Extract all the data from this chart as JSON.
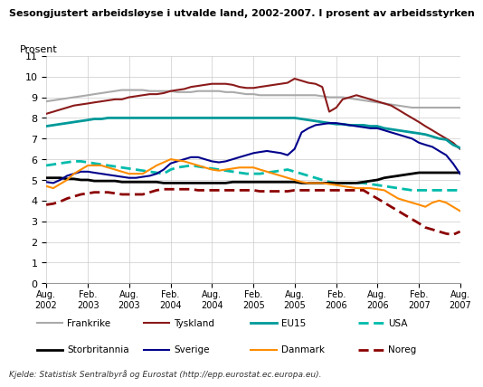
{
  "title": "Sesongjustert arbeidsløyse i utvalde land, 2002-2007. I prosent av arbeidsstyrken",
  "ylabel": "Prosent",
  "footnote": "Kjelde: Statistisk Sentralbyrå og Eurostat (http://epp.eurostat.ec.europa.eu).",
  "ylim": [
    0,
    11
  ],
  "yticks": [
    0,
    1,
    2,
    3,
    4,
    5,
    6,
    7,
    8,
    9,
    10,
    11
  ],
  "n_months": 61,
  "Frankrike": [
    8.8,
    8.85,
    8.9,
    8.95,
    9.0,
    9.05,
    9.1,
    9.15,
    9.2,
    9.25,
    9.3,
    9.35,
    9.35,
    9.35,
    9.35,
    9.3,
    9.3,
    9.3,
    9.3,
    9.25,
    9.25,
    9.25,
    9.3,
    9.3,
    9.3,
    9.3,
    9.25,
    9.25,
    9.2,
    9.15,
    9.15,
    9.1,
    9.1,
    9.1,
    9.1,
    9.1,
    9.1,
    9.1,
    9.1,
    9.1,
    9.05,
    9.0,
    9.0,
    9.0,
    8.95,
    8.9,
    8.85,
    8.8,
    8.75,
    8.7,
    8.65,
    8.6,
    8.55,
    8.5,
    8.5,
    8.5,
    8.5,
    8.5,
    8.5,
    8.5,
    8.5
  ],
  "Tyskland": [
    8.2,
    8.3,
    8.4,
    8.5,
    8.6,
    8.65,
    8.7,
    8.75,
    8.8,
    8.85,
    8.9,
    8.9,
    9.0,
    9.05,
    9.1,
    9.15,
    9.15,
    9.2,
    9.3,
    9.35,
    9.4,
    9.5,
    9.55,
    9.6,
    9.65,
    9.65,
    9.65,
    9.6,
    9.5,
    9.45,
    9.45,
    9.5,
    9.55,
    9.6,
    9.65,
    9.7,
    9.9,
    9.8,
    9.7,
    9.65,
    9.5,
    8.3,
    8.5,
    8.9,
    9.0,
    9.1,
    9.0,
    8.9,
    8.8,
    8.7,
    8.6,
    8.4,
    8.2,
    8.0,
    7.8,
    7.6,
    7.4,
    7.2,
    7.0,
    6.8,
    6.5
  ],
  "EU15": [
    7.6,
    7.65,
    7.7,
    7.75,
    7.8,
    7.85,
    7.9,
    7.95,
    7.95,
    8.0,
    8.0,
    8.0,
    8.0,
    8.0,
    8.0,
    8.0,
    8.0,
    8.0,
    8.0,
    8.0,
    8.0,
    8.0,
    8.0,
    8.0,
    8.0,
    8.0,
    8.0,
    8.0,
    8.0,
    8.0,
    8.0,
    8.0,
    8.0,
    8.0,
    8.0,
    8.0,
    8.0,
    7.95,
    7.9,
    7.85,
    7.8,
    7.75,
    7.7,
    7.7,
    7.65,
    7.65,
    7.65,
    7.6,
    7.6,
    7.5,
    7.45,
    7.4,
    7.35,
    7.3,
    7.25,
    7.2,
    7.1,
    7.0,
    6.95,
    6.7,
    6.55
  ],
  "USA": [
    5.7,
    5.75,
    5.8,
    5.85,
    5.9,
    5.9,
    5.85,
    5.8,
    5.75,
    5.7,
    5.65,
    5.6,
    5.55,
    5.5,
    5.45,
    5.4,
    5.35,
    5.3,
    5.5,
    5.6,
    5.65,
    5.7,
    5.65,
    5.6,
    5.55,
    5.5,
    5.45,
    5.4,
    5.35,
    5.3,
    5.3,
    5.3,
    5.35,
    5.4,
    5.45,
    5.5,
    5.4,
    5.3,
    5.2,
    5.1,
    5.0,
    4.9,
    4.85,
    4.85,
    4.85,
    4.85,
    4.85,
    4.8,
    4.75,
    4.7,
    4.65,
    4.6,
    4.55,
    4.5,
    4.5,
    4.5,
    4.5,
    4.5,
    4.5,
    4.5,
    4.5
  ],
  "Storbritannia": [
    5.1,
    5.1,
    5.1,
    5.05,
    5.05,
    5.0,
    5.0,
    4.95,
    4.95,
    4.95,
    4.95,
    4.9,
    4.9,
    4.9,
    4.9,
    4.9,
    4.9,
    4.85,
    4.85,
    4.85,
    4.85,
    4.85,
    4.85,
    4.85,
    4.85,
    4.85,
    4.85,
    4.9,
    4.9,
    4.9,
    4.9,
    4.9,
    4.9,
    4.9,
    4.9,
    4.9,
    4.9,
    4.85,
    4.85,
    4.85,
    4.85,
    4.85,
    4.85,
    4.85,
    4.85,
    4.85,
    4.9,
    4.95,
    5.0,
    5.1,
    5.15,
    5.2,
    5.25,
    5.3,
    5.35,
    5.35,
    5.35,
    5.35,
    5.35,
    5.35,
    5.35
  ],
  "Sverige": [
    4.9,
    4.85,
    5.0,
    5.2,
    5.3,
    5.4,
    5.4,
    5.35,
    5.3,
    5.25,
    5.2,
    5.15,
    5.1,
    5.1,
    5.15,
    5.2,
    5.3,
    5.5,
    5.8,
    5.9,
    6.0,
    6.1,
    6.1,
    6.0,
    5.9,
    5.85,
    5.9,
    6.0,
    6.1,
    6.2,
    6.3,
    6.35,
    6.4,
    6.35,
    6.3,
    6.2,
    6.5,
    7.3,
    7.5,
    7.65,
    7.7,
    7.75,
    7.75,
    7.7,
    7.65,
    7.6,
    7.55,
    7.5,
    7.5,
    7.4,
    7.3,
    7.2,
    7.1,
    7.0,
    6.8,
    6.7,
    6.6,
    6.4,
    6.2,
    5.8,
    5.3
  ],
  "Danmark": [
    4.7,
    4.6,
    4.8,
    5.0,
    5.3,
    5.5,
    5.7,
    5.7,
    5.7,
    5.6,
    5.5,
    5.4,
    5.3,
    5.3,
    5.3,
    5.5,
    5.7,
    5.85,
    6.0,
    5.95,
    5.9,
    5.8,
    5.7,
    5.6,
    5.5,
    5.45,
    5.5,
    5.55,
    5.6,
    5.6,
    5.6,
    5.5,
    5.4,
    5.3,
    5.2,
    5.1,
    5.0,
    4.9,
    4.85,
    4.85,
    4.85,
    4.8,
    4.75,
    4.7,
    4.65,
    4.6,
    4.6,
    4.6,
    4.55,
    4.5,
    4.3,
    4.1,
    4.0,
    3.9,
    3.8,
    3.7,
    3.9,
    4.0,
    3.9,
    3.7,
    3.5
  ],
  "Noreg": [
    3.8,
    3.85,
    3.95,
    4.1,
    4.2,
    4.3,
    4.35,
    4.4,
    4.4,
    4.4,
    4.35,
    4.3,
    4.3,
    4.3,
    4.3,
    4.4,
    4.5,
    4.55,
    4.55,
    4.55,
    4.55,
    4.55,
    4.5,
    4.5,
    4.5,
    4.5,
    4.5,
    4.5,
    4.5,
    4.5,
    4.5,
    4.45,
    4.45,
    4.45,
    4.45,
    4.45,
    4.5,
    4.5,
    4.5,
    4.5,
    4.5,
    4.5,
    4.5,
    4.5,
    4.5,
    4.5,
    4.5,
    4.3,
    4.1,
    3.9,
    3.7,
    3.5,
    3.3,
    3.1,
    2.9,
    2.7,
    2.6,
    2.5,
    2.4,
    2.35,
    2.5
  ],
  "colors": {
    "Frankrike": "#aaaaaa",
    "Tyskland": "#8b1a1a",
    "EU15": "#009999",
    "USA": "#00bbaa",
    "Storbritannia": "#000000",
    "Sverige": "#00008b",
    "Danmark": "#ff8c00",
    "Noreg": "#8b0000"
  },
  "linestyles": {
    "Frankrike": "solid",
    "Tyskland": "solid",
    "EU15": "solid",
    "USA": "dashed",
    "Storbritannia": "solid",
    "Sverige": "solid",
    "Danmark": "solid",
    "Noreg": "dashed"
  },
  "linewidths": {
    "Frankrike": 1.5,
    "Tyskland": 1.5,
    "EU15": 2.0,
    "USA": 2.0,
    "Storbritannia": 2.0,
    "Sverige": 1.5,
    "Danmark": 1.5,
    "Noreg": 2.0
  },
  "legend_row1": [
    "Frankrike",
    "Tyskland",
    "EU15",
    "USA"
  ],
  "legend_row2": [
    "Storbritannia",
    "Sverige",
    "Danmark",
    "Noreg"
  ]
}
